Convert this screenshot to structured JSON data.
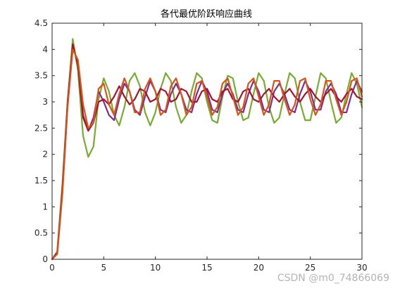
{
  "title": "各代最优阶跃响应曲线",
  "watermark": "CSDN @m0_74866069",
  "chart_data": {
    "type": "line",
    "title": "各代最优阶跃响应曲线",
    "xlabel": "",
    "ylabel": "",
    "xlim": [
      0,
      30
    ],
    "ylim": [
      0,
      4.5
    ],
    "xticks": [
      0,
      5,
      10,
      15,
      20,
      25,
      30
    ],
    "yticks": [
      0,
      0.5,
      1,
      1.5,
      2,
      2.5,
      3,
      3.5,
      4,
      4.5
    ],
    "grid": false,
    "legend": "none",
    "series": [
      {
        "color": "#77ac30",
        "x": [
          0,
          0.5,
          1,
          1.5,
          2,
          2.5,
          3,
          3.5,
          4,
          4.5,
          5,
          5.5,
          6,
          6.5,
          7,
          7.5,
          8,
          8.5,
          9,
          9.5,
          10,
          10.5,
          11,
          11.5,
          12,
          12.5,
          13,
          13.5,
          14,
          14.5,
          15,
          15.5,
          16,
          16.5,
          17,
          17.5,
          18,
          18.5,
          19,
          19.5,
          20,
          20.5,
          21,
          21.5,
          22,
          22.5,
          23,
          23.5,
          24,
          24.5,
          25,
          25.5,
          26,
          26.5,
          27,
          27.5,
          28,
          28.5,
          29,
          29.5,
          30
        ],
        "y": [
          0,
          0.15,
          1.45,
          3.0,
          4.2,
          3.6,
          2.35,
          1.95,
          2.15,
          3.05,
          3.45,
          3.2,
          2.75,
          2.55,
          2.9,
          3.4,
          3.55,
          3.3,
          2.8,
          2.55,
          2.8,
          3.25,
          3.55,
          3.4,
          2.9,
          2.6,
          2.75,
          3.2,
          3.55,
          3.45,
          3.0,
          2.65,
          2.6,
          3.1,
          3.5,
          3.45,
          3.0,
          2.65,
          2.7,
          3.15,
          3.55,
          3.4,
          2.9,
          2.6,
          2.7,
          3.15,
          3.55,
          3.45,
          3.0,
          2.65,
          2.65,
          3.1,
          3.55,
          3.45,
          3.0,
          2.6,
          2.7,
          3.15,
          3.55,
          3.35,
          2.9
        ]
      },
      {
        "color": "#7e2f8e",
        "x": [
          0,
          0.5,
          1,
          1.5,
          2,
          2.5,
          3,
          3.5,
          4,
          4.5,
          5,
          5.5,
          6,
          6.5,
          7,
          7.5,
          8,
          8.5,
          9,
          9.5,
          10,
          10.5,
          11,
          11.5,
          12,
          12.5,
          13,
          13.5,
          14,
          14.5,
          15,
          15.5,
          16,
          16.5,
          17,
          17.5,
          18,
          18.5,
          19,
          19.5,
          20,
          20.5,
          21,
          21.5,
          22,
          22.5,
          23,
          23.5,
          24,
          24.5,
          25,
          25.5,
          26,
          26.5,
          27,
          27.5,
          28,
          28.5,
          29,
          29.5,
          30
        ],
        "y": [
          0,
          0.12,
          1.3,
          2.95,
          4.05,
          3.75,
          2.75,
          2.45,
          2.7,
          3.2,
          3.0,
          2.75,
          2.65,
          3.05,
          3.35,
          3.2,
          2.85,
          2.75,
          3.1,
          3.4,
          3.2,
          2.85,
          2.8,
          3.15,
          3.35,
          3.15,
          2.85,
          2.8,
          3.15,
          3.4,
          3.2,
          2.85,
          2.8,
          3.15,
          3.35,
          3.15,
          2.85,
          2.8,
          3.15,
          3.4,
          3.2,
          2.85,
          2.8,
          3.2,
          3.35,
          3.15,
          2.85,
          2.8,
          3.15,
          3.4,
          3.2,
          2.85,
          2.85,
          3.2,
          3.35,
          3.15,
          2.8,
          2.8,
          3.15,
          3.4,
          3.2
        ]
      },
      {
        "color": "#a2142f",
        "x": [
          0,
          0.5,
          1,
          1.5,
          2,
          2.5,
          3,
          3.5,
          4,
          4.5,
          5,
          5.5,
          6,
          6.5,
          7,
          7.5,
          8,
          8.5,
          9,
          9.5,
          10,
          10.5,
          11,
          11.5,
          12,
          12.5,
          13,
          13.5,
          14,
          14.5,
          15,
          15.5,
          16,
          16.5,
          17,
          17.5,
          18,
          18.5,
          19,
          19.5,
          20,
          20.5,
          21,
          21.5,
          22,
          22.5,
          23,
          23.5,
          24,
          24.5,
          25,
          25.5,
          26,
          26.5,
          27,
          27.5,
          28,
          28.5,
          29,
          29.5,
          30
        ],
        "y": [
          0,
          0.13,
          1.35,
          3.0,
          4.1,
          3.7,
          2.7,
          2.45,
          2.6,
          3.0,
          3.05,
          2.95,
          3.1,
          3.3,
          3.1,
          2.95,
          3.05,
          3.25,
          3.2,
          3.0,
          3.05,
          3.25,
          3.2,
          3.0,
          3.05,
          3.25,
          3.2,
          3.0,
          3.0,
          3.2,
          3.25,
          3.05,
          3.0,
          3.2,
          3.25,
          3.05,
          3.0,
          3.2,
          3.25,
          3.05,
          3.0,
          3.15,
          3.25,
          3.1,
          3.0,
          3.15,
          3.25,
          3.1,
          3.0,
          3.15,
          3.25,
          3.1,
          3.0,
          3.15,
          3.25,
          3.1,
          3.0,
          3.15,
          3.25,
          3.1,
          3.05
        ]
      },
      {
        "color": "#d95319",
        "x": [
          0,
          0.5,
          1,
          1.5,
          2,
          2.5,
          3,
          3.5,
          4,
          4.5,
          5,
          5.5,
          6,
          6.5,
          7,
          7.5,
          8,
          8.5,
          9,
          9.5,
          10,
          10.5,
          11,
          11.5,
          12,
          12.5,
          13,
          13.5,
          14,
          14.5,
          15,
          15.5,
          16,
          16.5,
          17,
          17.5,
          18,
          18.5,
          19,
          19.5,
          20,
          20.5,
          21,
          21.5,
          22,
          22.5,
          23,
          23.5,
          24,
          24.5,
          25,
          25.5,
          26,
          26.5,
          27,
          27.5,
          28,
          28.5,
          29,
          29.5,
          30
        ],
        "y": [
          0,
          0.1,
          1.25,
          2.9,
          4.0,
          3.8,
          2.95,
          2.5,
          2.6,
          3.25,
          3.35,
          2.95,
          2.75,
          3.15,
          3.45,
          3.2,
          2.8,
          2.8,
          3.25,
          3.45,
          3.2,
          2.75,
          2.85,
          3.3,
          3.45,
          3.15,
          2.75,
          2.9,
          3.35,
          3.4,
          3.1,
          2.75,
          2.9,
          3.35,
          3.45,
          3.1,
          2.75,
          2.9,
          3.35,
          3.45,
          3.1,
          2.75,
          2.95,
          3.4,
          3.4,
          3.05,
          2.75,
          2.95,
          3.4,
          3.45,
          3.05,
          2.75,
          2.95,
          3.4,
          3.4,
          3.05,
          2.75,
          3.0,
          3.4,
          3.45,
          3.1
        ]
      }
    ]
  }
}
